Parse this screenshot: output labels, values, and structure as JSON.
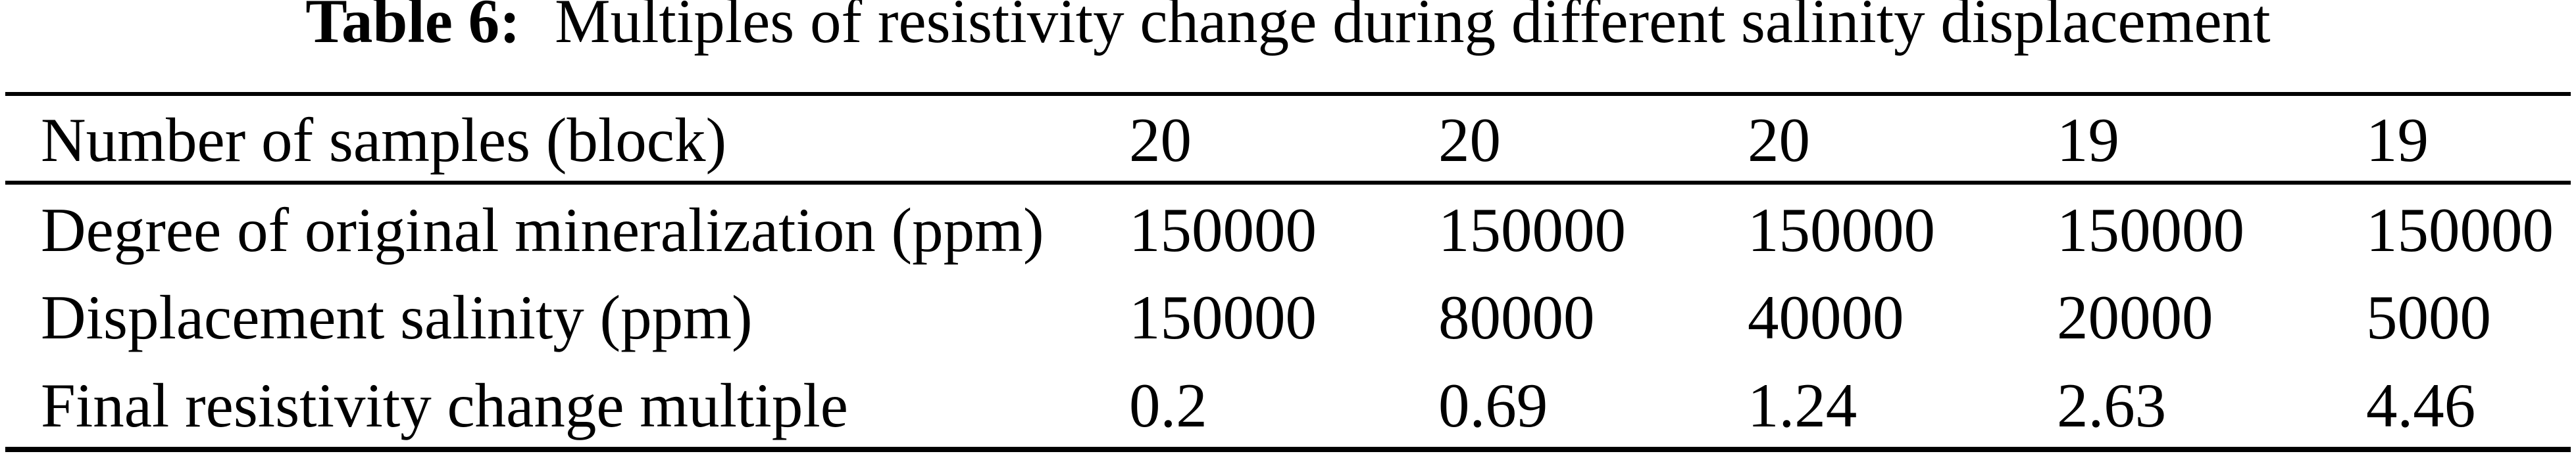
{
  "caption": {
    "label": "Table 6:",
    "text": "Multiples of resistivity change during different salinity displacement"
  },
  "table": {
    "rows": [
      {
        "label": "Number of samples (block)",
        "values": [
          "20",
          "20",
          "20",
          "19",
          "19"
        ]
      },
      {
        "label": "Degree of original mineralization (ppm)",
        "values": [
          "150000",
          "150000",
          "150000",
          "150000",
          "150000"
        ]
      },
      {
        "label": "Displacement salinity (ppm)",
        "values": [
          "150000",
          "80000",
          "40000",
          "20000",
          "5000"
        ]
      },
      {
        "label": "Final resistivity change multiple",
        "values": [
          "0.2",
          "0.69",
          "1.24",
          "2.63",
          "4.46"
        ]
      }
    ]
  },
  "colors": {
    "text": "#000000",
    "rule": "#000000",
    "background": "#ffffff"
  }
}
